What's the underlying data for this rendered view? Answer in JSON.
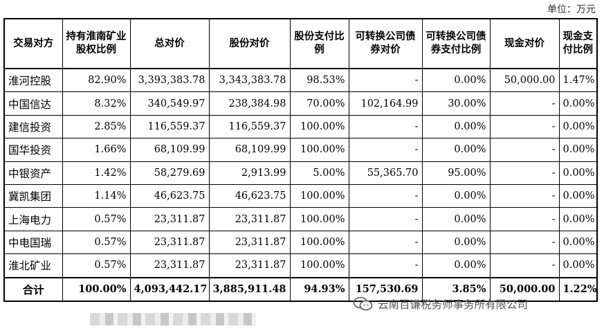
{
  "unit_label": "单位：万元",
  "headers": [
    "交易对方",
    "持有淮南矿业股权比例",
    "总对价",
    "股份对价",
    "股份支付比例",
    "可转换公司债券对价",
    "可转换公司债券支付比例",
    "现金对价",
    "现金支付比例"
  ],
  "rows": [
    [
      "淮河控股",
      "82.90%",
      "3,393,383.78",
      "3,343,383.78",
      "98.53%",
      "-",
      "0.00%",
      "50,000.00",
      "1.47%"
    ],
    [
      "中国信达",
      "8.32%",
      "340,549.97",
      "238,384.98",
      "70.00%",
      "102,164.99",
      "30.00%",
      "-",
      "0.00%"
    ],
    [
      "建信投资",
      "2.85%",
      "116,559.37",
      "116,559.37",
      "100.00%",
      "-",
      "0.00%",
      "-",
      "0.00%"
    ],
    [
      "国华投资",
      "1.66%",
      "68,109.99",
      "68,109.99",
      "100.00%",
      "-",
      "0.00%",
      "-",
      "0.00%"
    ],
    [
      "中银资产",
      "1.42%",
      "58,279.69",
      "2,913.99",
      "5.00%",
      "55,365.70",
      "95.00%",
      "-",
      "0.00%"
    ],
    [
      "冀凯集团",
      "1.14%",
      "46,623.75",
      "46,623.75",
      "100.00%",
      "-",
      "0.00%",
      "-",
      "0.00%"
    ],
    [
      "上海电力",
      "0.57%",
      "23,311.87",
      "23,311.87",
      "100.00%",
      "-",
      "0.00%",
      "-",
      "0.00%"
    ],
    [
      "中电国瑞",
      "0.57%",
      "23,311.87",
      "23,311.87",
      "100.00%",
      "-",
      "0.00%",
      "-",
      "0.00%"
    ],
    [
      "淮北矿业",
      "0.57%",
      "23,311.87",
      "23,311.87",
      "100.00%",
      "-",
      "0.00%",
      "-",
      "0.00%"
    ]
  ],
  "total": [
    "合计",
    "100.00%",
    "4,093,442.17",
    "3,885,911.48",
    "94.93%",
    "157,530.69",
    "3.85%",
    "50,000.00",
    "1.22%"
  ],
  "watermark": {
    "text": "云南百谦税务师事务所有限公司",
    "icon": "wechat-icon"
  }
}
